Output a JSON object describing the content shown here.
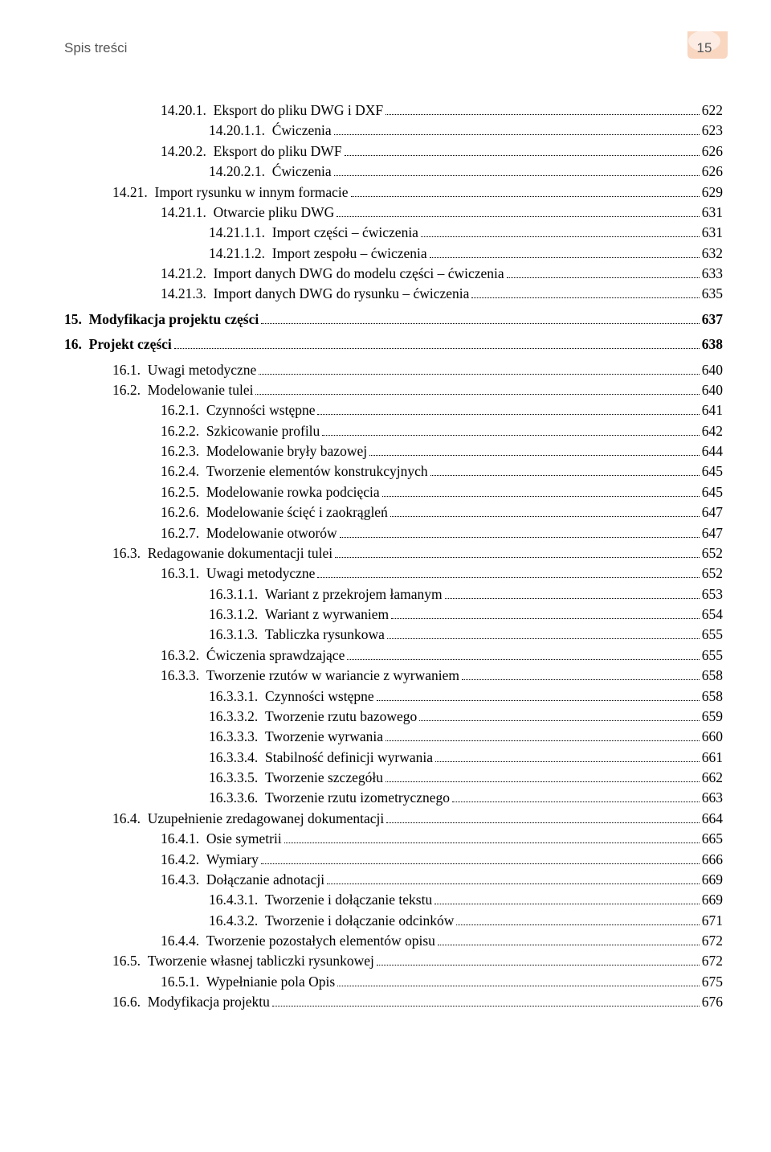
{
  "header": {
    "title": "Spis treści",
    "page_num": "15",
    "badge_fill": "#f8d6c0",
    "badge_stroke": "#e8955f",
    "text_color": "#555555"
  },
  "toc": [
    {
      "lvl": 2,
      "n": "14.20.1.",
      "t": "Eksport do pliku DWG i DXF",
      "p": "622"
    },
    {
      "lvl": 3,
      "n": "14.20.1.1.",
      "t": "Ćwiczenia",
      "p": "623"
    },
    {
      "lvl": 2,
      "n": "14.20.2.",
      "t": "Eksport do pliku DWF",
      "p": "626"
    },
    {
      "lvl": 3,
      "n": "14.20.2.1.",
      "t": "Ćwiczenia",
      "p": "626"
    },
    {
      "lvl": 1,
      "n": "14.21.",
      "t": "Import rysunku w innym formacie",
      "p": "629"
    },
    {
      "lvl": 2,
      "n": "14.21.1.",
      "t": "Otwarcie pliku DWG",
      "p": "631"
    },
    {
      "lvl": 3,
      "n": "14.21.1.1.",
      "t": "Import części – ćwiczenia",
      "p": "631"
    },
    {
      "lvl": 3,
      "n": "14.21.1.2.",
      "t": "Import zespołu – ćwiczenia",
      "p": "632"
    },
    {
      "lvl": 2,
      "n": "14.21.2.",
      "t": "Import danych DWG do modelu części – ćwiczenia",
      "p": "633"
    },
    {
      "lvl": 2,
      "n": "14.21.3.",
      "t": "Import danych DWG do rysunku – ćwiczenia",
      "p": "635"
    },
    {
      "lvl": 0,
      "n": "15.",
      "t": "Modyfikacja projektu części",
      "p": "637",
      "bold": true,
      "chapter": true
    },
    {
      "lvl": 0,
      "n": "16.",
      "t": "Projekt części",
      "p": "638",
      "bold": true,
      "chapter": true
    },
    {
      "lvl": 1,
      "n": "16.1.",
      "t": "Uwagi metodyczne",
      "p": "640"
    },
    {
      "lvl": 1,
      "n": "16.2.",
      "t": "Modelowanie tulei",
      "p": "640"
    },
    {
      "lvl": 2,
      "n": "16.2.1.",
      "t": "Czynności wstępne",
      "p": "641"
    },
    {
      "lvl": 2,
      "n": "16.2.2.",
      "t": "Szkicowanie profilu",
      "p": "642"
    },
    {
      "lvl": 2,
      "n": "16.2.3.",
      "t": "Modelowanie bryły bazowej",
      "p": "644"
    },
    {
      "lvl": 2,
      "n": "16.2.4.",
      "t": "Tworzenie elementów konstrukcyjnych",
      "p": "645"
    },
    {
      "lvl": 2,
      "n": "16.2.5.",
      "t": "Modelowanie rowka podcięcia",
      "p": "645"
    },
    {
      "lvl": 2,
      "n": "16.2.6.",
      "t": "Modelowanie ścięć i zaokrągleń",
      "p": "647"
    },
    {
      "lvl": 2,
      "n": "16.2.7.",
      "t": "Modelowanie otworów",
      "p": "647"
    },
    {
      "lvl": 1,
      "n": "16.3.",
      "t": "Redagowanie dokumentacji tulei",
      "p": "652"
    },
    {
      "lvl": 2,
      "n": "16.3.1.",
      "t": "Uwagi metodyczne",
      "p": "652"
    },
    {
      "lvl": 3,
      "n": "16.3.1.1.",
      "t": "Wariant z przekrojem łamanym",
      "p": "653"
    },
    {
      "lvl": 3,
      "n": "16.3.1.2.",
      "t": "Wariant z wyrwaniem",
      "p": "654"
    },
    {
      "lvl": 3,
      "n": "16.3.1.3.",
      "t": "Tabliczka rysunkowa",
      "p": "655"
    },
    {
      "lvl": 2,
      "n": "16.3.2.",
      "t": "Ćwiczenia sprawdzające",
      "p": "655"
    },
    {
      "lvl": 2,
      "n": "16.3.3.",
      "t": "Tworzenie rzutów w wariancie z wyrwaniem",
      "p": "658"
    },
    {
      "lvl": 3,
      "n": "16.3.3.1.",
      "t": "Czynności wstępne",
      "p": "658"
    },
    {
      "lvl": 3,
      "n": "16.3.3.2.",
      "t": "Tworzenie rzutu bazowego",
      "p": "659"
    },
    {
      "lvl": 3,
      "n": "16.3.3.3.",
      "t": "Tworzenie wyrwania",
      "p": "660"
    },
    {
      "lvl": 3,
      "n": "16.3.3.4.",
      "t": "Stabilność definicji wyrwania",
      "p": "661"
    },
    {
      "lvl": 3,
      "n": "16.3.3.5.",
      "t": "Tworzenie szczegółu",
      "p": "662"
    },
    {
      "lvl": 3,
      "n": "16.3.3.6.",
      "t": "Tworzenie rzutu izometrycznego",
      "p": "663"
    },
    {
      "lvl": 1,
      "n": "16.4.",
      "t": "Uzupełnienie zredagowanej dokumentacji",
      "p": "664"
    },
    {
      "lvl": 2,
      "n": "16.4.1.",
      "t": "Osie symetrii",
      "p": "665"
    },
    {
      "lvl": 2,
      "n": "16.4.2.",
      "t": "Wymiary",
      "p": "666"
    },
    {
      "lvl": 2,
      "n": "16.4.3.",
      "t": "Dołączanie adnotacji",
      "p": "669"
    },
    {
      "lvl": 3,
      "n": "16.4.3.1.",
      "t": "Tworzenie i dołączanie tekstu",
      "p": "669"
    },
    {
      "lvl": 3,
      "n": "16.4.3.2.",
      "t": "Tworzenie i dołączanie odcinków",
      "p": "671"
    },
    {
      "lvl": 2,
      "n": "16.4.4.",
      "t": "Tworzenie pozostałych elementów opisu",
      "p": "672"
    },
    {
      "lvl": 1,
      "n": "16.5.",
      "t": "Tworzenie własnej tabliczki rysunkowej",
      "p": "672"
    },
    {
      "lvl": 2,
      "n": "16.5.1.",
      "t": "Wypełnianie pola Opis",
      "p": "675"
    },
    {
      "lvl": 1,
      "n": "16.6.",
      "t": "Modyfikacja projektu",
      "p": "676"
    }
  ]
}
